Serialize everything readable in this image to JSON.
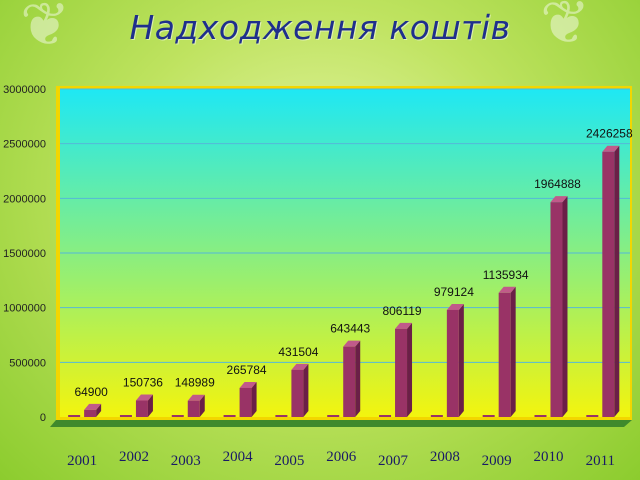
{
  "title": "Надходження коштів",
  "chart_data": {
    "type": "bar",
    "categories": [
      "2001",
      "2002",
      "2003",
      "2004",
      "2005",
      "2006",
      "2007",
      "2008",
      "2009",
      "2010",
      "2011"
    ],
    "series": [
      {
        "values": [
          64900,
          150736,
          148989,
          265784,
          431504,
          643443,
          806119,
          979124,
          1135934,
          1964888,
          2426258
        ]
      }
    ],
    "y_ticks": [
      "0",
      "500000",
      "1000000",
      "1500000",
      "2000000",
      "2500000",
      "3000000"
    ],
    "ylim": [
      0,
      3000000
    ],
    "grid": true,
    "colors": {
      "bar_front": "#993366",
      "bar_side": "#6b1f47",
      "bar_top": "#c15a8a",
      "plot_top": "#1ee8f4",
      "plot_bottom": "#f3f40e",
      "back_wall_edge": "#f3d600",
      "grid": "#55b8d8",
      "floor": "#3f8a2c"
    }
  }
}
